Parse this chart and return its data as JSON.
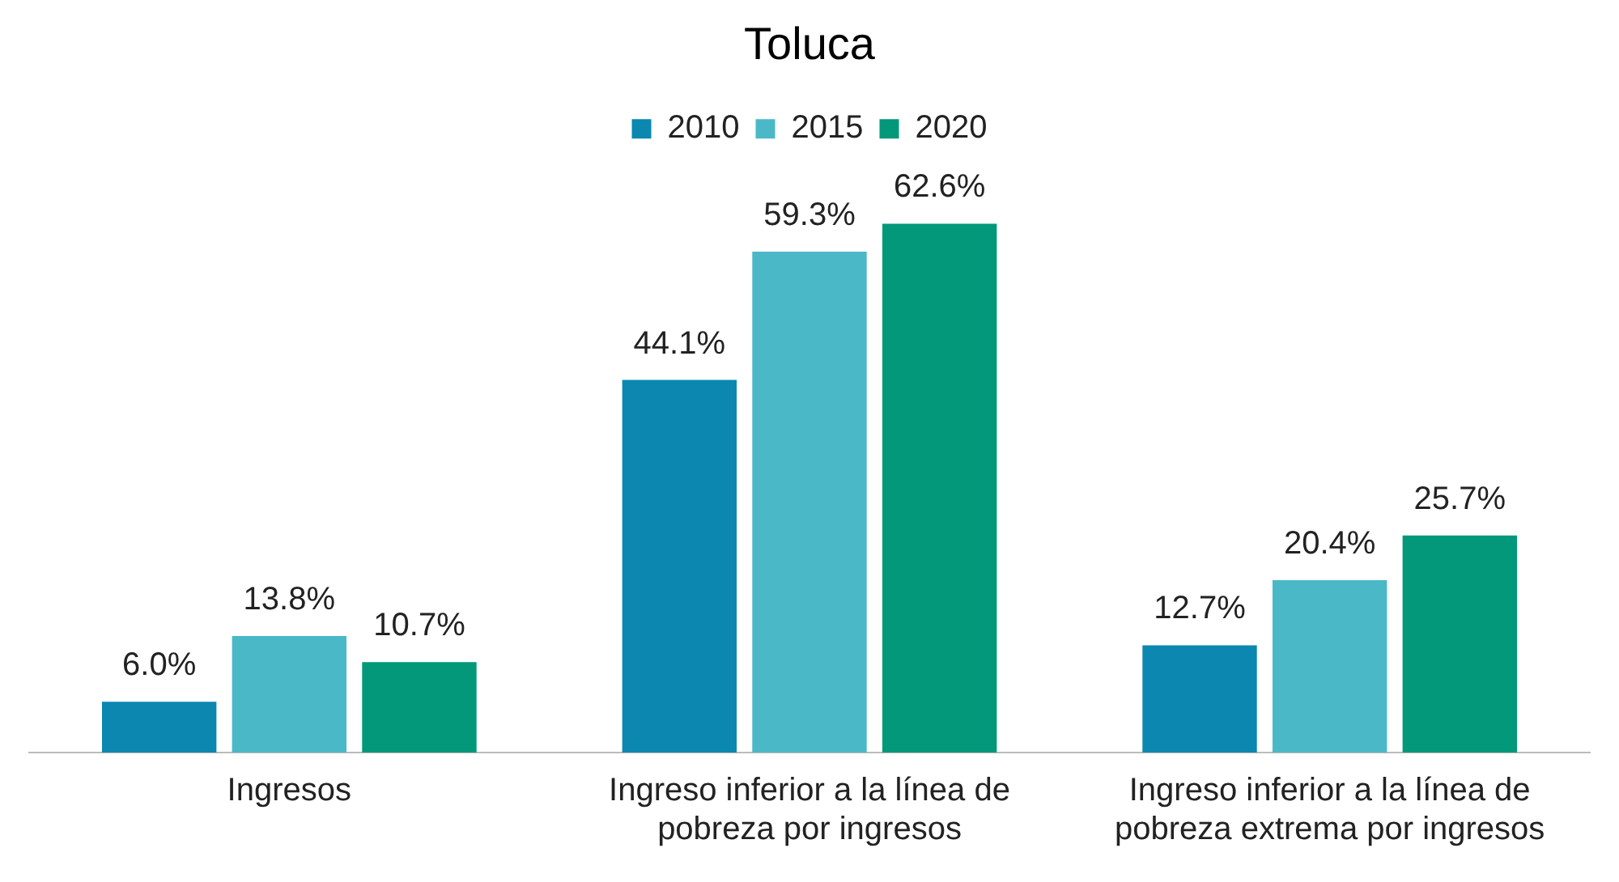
{
  "chart_data": {
    "type": "bar",
    "title": "Toluca",
    "categories": [
      "Ingresos",
      "Ingreso inferior a la línea de pobreza por ingresos",
      "Ingreso inferior a la línea de pobreza extrema por ingresos"
    ],
    "series": [
      {
        "name": "2010",
        "color": "#0b87b0",
        "values": [
          6.0,
          44.1,
          12.7
        ],
        "value_labels": [
          "6.0%",
          "44.1%",
          "12.7%"
        ]
      },
      {
        "name": "2015",
        "color": "#4bb8c8",
        "values": [
          13.8,
          59.3,
          20.4
        ],
        "value_labels": [
          "13.8%",
          "59.3%",
          "20.4%"
        ]
      },
      {
        "name": "2020",
        "color": "#03987a",
        "values": [
          10.7,
          62.6,
          25.7
        ],
        "value_labels": [
          "10.7%",
          "62.6%",
          "25.7%"
        ]
      }
    ],
    "legend": "top",
    "grid": false
  }
}
